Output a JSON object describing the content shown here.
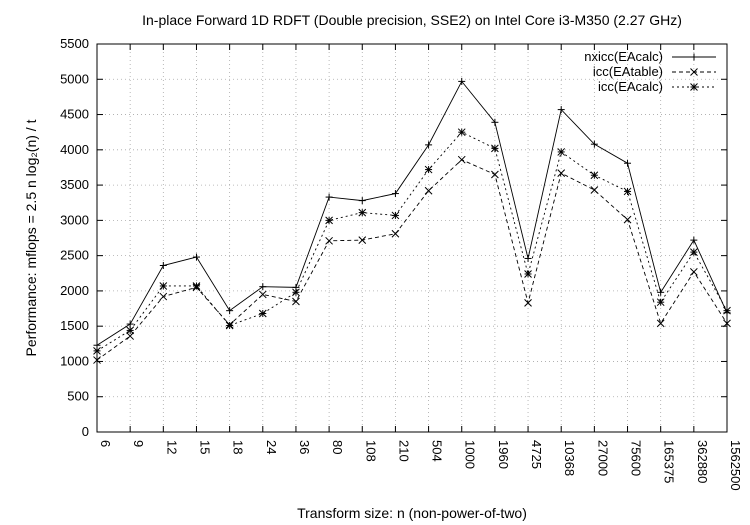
{
  "chart_data": {
    "type": "line",
    "title": "In-place Forward 1D RDFT (Double precision, SSE2) on Intel Core i3-M350 (2.27 GHz)",
    "xlabel": "Transform size: n (non-power-of-two)",
    "ylabel": "Performance: mflops = 2.5 n log₂(n) / t",
    "ylim": [
      0,
      5500
    ],
    "yticks": [
      "0",
      "500",
      "1000",
      "1500",
      "2000",
      "2500",
      "3000",
      "3500",
      "4000",
      "4500",
      "5000",
      "5500"
    ],
    "ytick_values": [
      0,
      500,
      1000,
      1500,
      2000,
      2500,
      3000,
      3500,
      4000,
      4500,
      5000,
      5500
    ],
    "categories": [
      "6",
      "9",
      "12",
      "15",
      "18",
      "24",
      "36",
      "80",
      "108",
      "210",
      "504",
      "1000",
      "1960",
      "4725",
      "10368",
      "27000",
      "75600",
      "165375",
      "362880",
      "1562500"
    ],
    "grid": true,
    "legend_position": "top-right",
    "series": [
      {
        "name": "nxicc(EAcalc)",
        "marker": "plus",
        "dash": "solid",
        "values": [
          1230,
          1530,
          2360,
          2480,
          1720,
          2060,
          2050,
          3330,
          3280,
          3380,
          4070,
          4970,
          4390,
          2460,
          4570,
          4080,
          3810,
          1980,
          2720,
          1690
        ]
      },
      {
        "name": "icc(EAtable)",
        "marker": "cross",
        "dash": "dashed",
        "values": [
          1020,
          1360,
          1920,
          2050,
          1520,
          1950,
          1850,
          2710,
          2720,
          2810,
          3420,
          3860,
          3650,
          1830,
          3670,
          3430,
          3010,
          1540,
          2270,
          1540
        ]
      },
      {
        "name": "icc(EAcalc)",
        "marker": "star",
        "dash": "dotted",
        "values": [
          1150,
          1440,
          2070,
          2070,
          1510,
          1680,
          1980,
          3000,
          3110,
          3070,
          3720,
          4250,
          4020,
          2240,
          3970,
          3640,
          3410,
          1840,
          2550,
          1720
        ]
      }
    ]
  }
}
